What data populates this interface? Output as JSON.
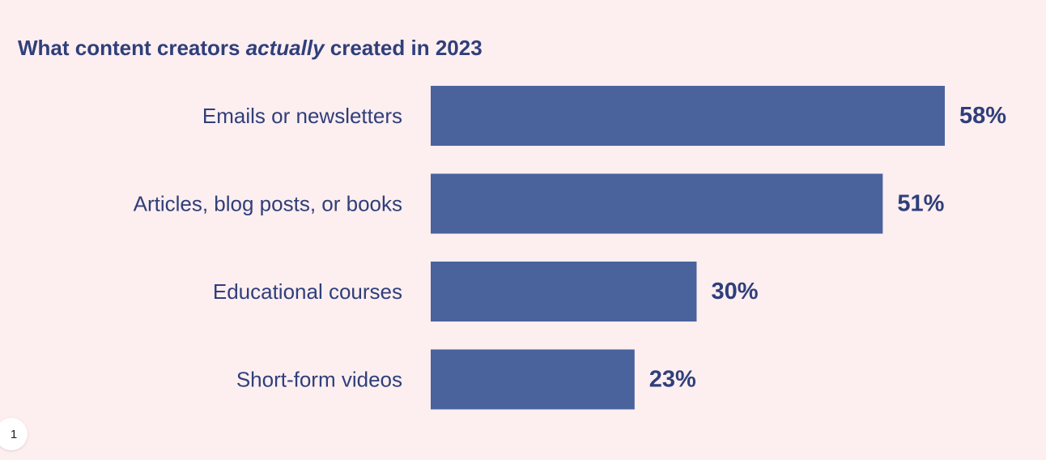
{
  "chart_data": {
    "type": "bar",
    "orientation": "horizontal",
    "title_parts": {
      "before": "What content creators ",
      "emphasis": "actually",
      "after": " created in 2023"
    },
    "categories": [
      "Emails or newsletters",
      "Articles, blog posts, or books",
      "Educational courses",
      "Short-form videos"
    ],
    "values": [
      58,
      51,
      30,
      23
    ],
    "value_suffix": "%",
    "bar_color": "#4a639c",
    "label_color": "#2f3f7a",
    "xlim": [
      0,
      100
    ],
    "grid": false
  },
  "page_badge": {
    "number": "1"
  }
}
